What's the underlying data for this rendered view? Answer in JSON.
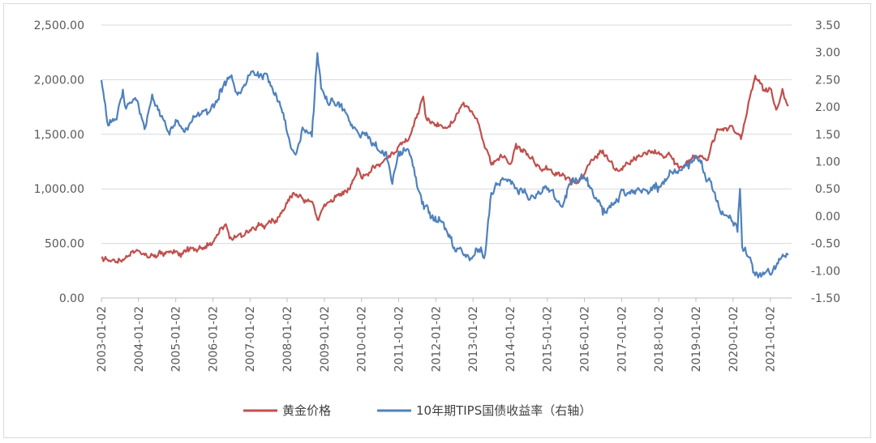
{
  "chart_data": {
    "type": "line",
    "title": "",
    "grid": true,
    "legend_position": "bottom",
    "colors": {
      "gold": "#c0504d",
      "tips": "#4f81bd",
      "grid": "#d9d9d9",
      "axis": "#bfbfbf",
      "text": "#595959"
    },
    "left_axis": {
      "range": [
        0,
        2500
      ],
      "ticks": [
        "0.00",
        "500.00",
        "1,000.00",
        "1,500.00",
        "2,000.00",
        "2,500.00"
      ]
    },
    "right_axis": {
      "range": [
        -1.5,
        3.5
      ],
      "ticks": [
        "-1.50",
        "-1.00",
        "-0.50",
        "0.00",
        "0.50",
        "1.00",
        "1.50",
        "2.00",
        "2.50",
        "3.00",
        "3.50"
      ]
    },
    "x_axis": {
      "range": [
        "2003-01-02",
        "2021-07-31"
      ],
      "tick_labels": [
        "2003-01-02",
        "2004-01-02",
        "2005-01-02",
        "2006-01-02",
        "2007-01-02",
        "2008-01-02",
        "2009-01-02",
        "2010-01-02",
        "2011-01-02",
        "2012-01-02",
        "2013-01-02",
        "2014-01-02",
        "2015-01-02",
        "2016-01-02",
        "2017-01-02",
        "2018-01-02",
        "2019-01-02",
        "2020-01-02",
        "2021-01-02"
      ]
    },
    "series": [
      {
        "name": "黄金价格",
        "axis": "left",
        "color": "#c0504d",
        "points": [
          [
            "2003-01-02",
            350
          ],
          [
            "2003-04-01",
            330
          ],
          [
            "2003-07-01",
            345
          ],
          [
            "2003-10-01",
            380
          ],
          [
            "2004-01-02",
            410
          ],
          [
            "2004-04-01",
            400
          ],
          [
            "2004-07-01",
            395
          ],
          [
            "2004-10-01",
            420
          ],
          [
            "2005-01-02",
            430
          ],
          [
            "2005-04-01",
            425
          ],
          [
            "2005-07-01",
            425
          ],
          [
            "2005-10-01",
            470
          ],
          [
            "2006-01-02",
            520
          ],
          [
            "2006-05-10",
            700
          ],
          [
            "2006-06-15",
            580
          ],
          [
            "2006-10-01",
            590
          ],
          [
            "2007-01-02",
            630
          ],
          [
            "2007-06-01",
            660
          ],
          [
            "2007-10-01",
            750
          ],
          [
            "2008-01-02",
            870
          ],
          [
            "2008-03-15",
            990
          ],
          [
            "2008-06-01",
            900
          ],
          [
            "2008-09-01",
            860
          ],
          [
            "2008-10-25",
            730
          ],
          [
            "2009-01-02",
            870
          ],
          [
            "2009-06-01",
            940
          ],
          [
            "2009-09-01",
            1000
          ],
          [
            "2009-12-01",
            1200
          ],
          [
            "2010-01-02",
            1100
          ],
          [
            "2010-06-01",
            1240
          ],
          [
            "2010-09-01",
            1260
          ],
          [
            "2011-01-02",
            1400
          ],
          [
            "2011-05-01",
            1500
          ],
          [
            "2011-09-01",
            1850
          ],
          [
            "2011-10-01",
            1650
          ],
          [
            "2012-01-02",
            1600
          ],
          [
            "2012-05-01",
            1560
          ],
          [
            "2012-10-01",
            1780
          ],
          [
            "2013-01-02",
            1680
          ],
          [
            "2013-03-01",
            1590
          ],
          [
            "2013-04-20",
            1400
          ],
          [
            "2013-07-01",
            1220
          ],
          [
            "2013-10-01",
            1320
          ],
          [
            "2014-01-02",
            1220
          ],
          [
            "2014-03-01",
            1380
          ],
          [
            "2014-07-01",
            1310
          ],
          [
            "2014-11-01",
            1160
          ],
          [
            "2015-01-02",
            1200
          ],
          [
            "2015-07-01",
            1100
          ],
          [
            "2015-12-01",
            1060
          ],
          [
            "2016-03-01",
            1250
          ],
          [
            "2016-07-01",
            1360
          ],
          [
            "2016-12-01",
            1130
          ],
          [
            "2017-06-01",
            1270
          ],
          [
            "2017-09-01",
            1340
          ],
          [
            "2018-01-02",
            1320
          ],
          [
            "2018-04-01",
            1340
          ],
          [
            "2018-08-01",
            1180
          ],
          [
            "2019-01-02",
            1290
          ],
          [
            "2019-05-01",
            1280
          ],
          [
            "2019-08-01",
            1530
          ],
          [
            "2020-01-02",
            1550
          ],
          [
            "2020-03-20",
            1480
          ],
          [
            "2020-08-07",
            2060
          ],
          [
            "2020-11-01",
            1870
          ],
          [
            "2021-01-02",
            1930
          ],
          [
            "2021-03-01",
            1700
          ],
          [
            "2021-05-01",
            1900
          ],
          [
            "2021-06-30",
            1760
          ]
        ]
      },
      {
        "name": "10年期TIPS国债收益率（右轴）",
        "axis": "right",
        "color": "#4f81bd",
        "points": [
          [
            "2003-01-02",
            2.5
          ],
          [
            "2003-03-10",
            1.7
          ],
          [
            "2003-06-01",
            1.8
          ],
          [
            "2003-08-01",
            2.3
          ],
          [
            "2003-09-01",
            2.0
          ],
          [
            "2003-12-01",
            2.2
          ],
          [
            "2004-03-01",
            1.6
          ],
          [
            "2004-05-15",
            2.2
          ],
          [
            "2004-08-01",
            1.8
          ],
          [
            "2004-11-01",
            1.6
          ],
          [
            "2005-01-02",
            1.8
          ],
          [
            "2005-04-01",
            1.6
          ],
          [
            "2005-08-01",
            1.8
          ],
          [
            "2005-10-01",
            1.9
          ],
          [
            "2006-01-02",
            2.0
          ],
          [
            "2006-06-15",
            2.65
          ],
          [
            "2006-10-01",
            2.2
          ],
          [
            "2007-01-02",
            2.5
          ],
          [
            "2007-06-15",
            2.6
          ],
          [
            "2007-09-01",
            2.3
          ],
          [
            "2008-01-02",
            1.6
          ],
          [
            "2008-03-15",
            1.1
          ],
          [
            "2008-06-01",
            1.6
          ],
          [
            "2008-09-01",
            1.5
          ],
          [
            "2008-10-25",
            3.0
          ],
          [
            "2008-12-01",
            2.4
          ],
          [
            "2009-01-02",
            2.2
          ],
          [
            "2009-06-01",
            2.0
          ],
          [
            "2009-09-01",
            1.8
          ],
          [
            "2010-01-02",
            1.5
          ],
          [
            "2010-06-01",
            1.3
          ],
          [
            "2010-09-01",
            1.1
          ],
          [
            "2010-11-01",
            0.6
          ],
          [
            "2011-01-02",
            1.1
          ],
          [
            "2011-04-01",
            1.2
          ],
          [
            "2011-06-01",
            0.9
          ],
          [
            "2011-08-20",
            0.2
          ],
          [
            "2011-12-01",
            0.0
          ],
          [
            "2012-03-01",
            -0.1
          ],
          [
            "2012-07-01",
            -0.6
          ],
          [
            "2012-12-01",
            -0.8
          ],
          [
            "2013-03-01",
            -0.6
          ],
          [
            "2013-05-01",
            -0.7
          ],
          [
            "2013-07-01",
            0.5
          ],
          [
            "2013-10-01",
            0.7
          ],
          [
            "2014-01-02",
            0.6
          ],
          [
            "2014-07-01",
            0.3
          ],
          [
            "2015-01-02",
            0.5
          ],
          [
            "2015-06-01",
            0.2
          ],
          [
            "2015-09-01",
            0.6
          ],
          [
            "2016-01-02",
            0.7
          ],
          [
            "2016-07-01",
            0.0
          ],
          [
            "2016-12-01",
            0.3
          ],
          [
            "2017-01-02",
            0.45
          ],
          [
            "2017-06-01",
            0.4
          ],
          [
            "2017-09-01",
            0.5
          ],
          [
            "2018-01-02",
            0.55
          ],
          [
            "2018-05-01",
            0.8
          ],
          [
            "2018-11-01",
            0.9
          ],
          [
            "2019-01-02",
            1.1
          ],
          [
            "2019-06-01",
            0.6
          ],
          [
            "2019-09-01",
            0.1
          ],
          [
            "2019-12-01",
            0.0
          ],
          [
            "2020-02-15",
            -0.2
          ],
          [
            "2020-03-10",
            0.6
          ],
          [
            "2020-04-01",
            -0.5
          ],
          [
            "2020-08-07",
            -1.1
          ],
          [
            "2020-12-01",
            -1.0
          ],
          [
            "2021-01-02",
            -1.05
          ],
          [
            "2021-03-01",
            -0.9
          ],
          [
            "2021-06-30",
            -0.7
          ]
        ]
      }
    ]
  }
}
